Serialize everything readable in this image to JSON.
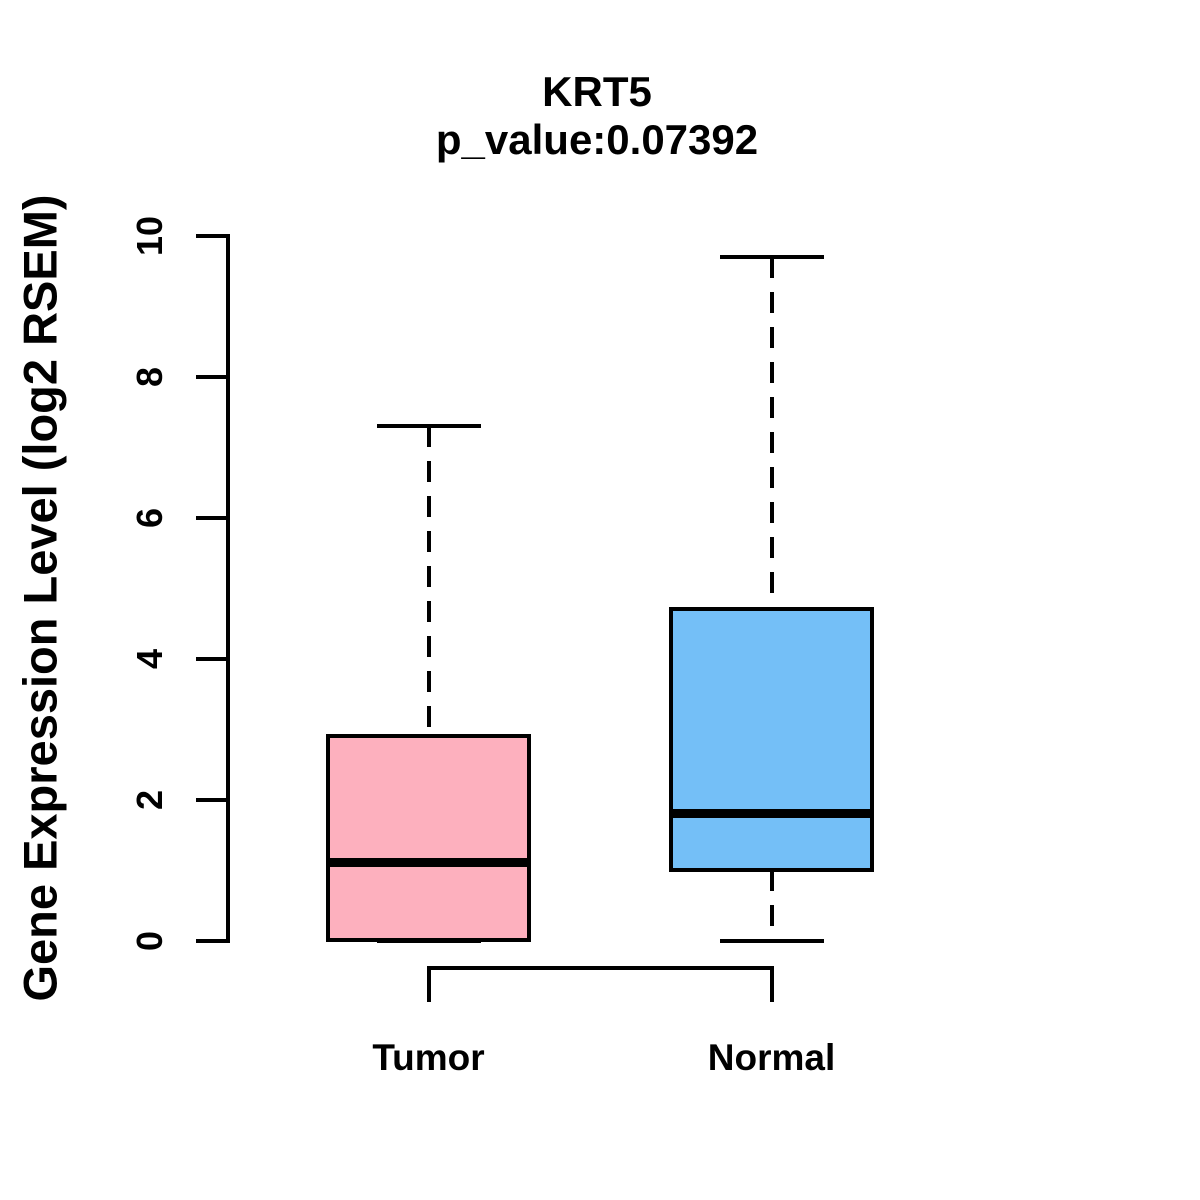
{
  "title": "KRT5",
  "subtitle": "p_value:0.07392",
  "y_axis_label": "Gene Expression Level (log2 RSEM)",
  "colors": {
    "tumor_fill": "#fdb0be",
    "normal_fill": "#74bff7",
    "line": "#000000",
    "background": "#ffffff"
  },
  "chart_data": {
    "type": "boxplot",
    "title": "KRT5",
    "subtitle": "p_value:0.07392",
    "ylabel": "Gene Expression Level (log2 RSEM)",
    "xlabel": "",
    "categories": [
      "Tumor",
      "Normal"
    ],
    "series": [
      {
        "name": "Tumor",
        "min": 0,
        "q1": 0,
        "median": 1.1,
        "q3": 2.9,
        "max": 7.3,
        "fill_color": "#fdb0be"
      },
      {
        "name": "Normal",
        "min": 0,
        "q1": 1.0,
        "median": 1.8,
        "q3": 4.7,
        "max": 9.7,
        "fill_color": "#74bff7"
      }
    ],
    "ylim": [
      0,
      10
    ],
    "yticks": [
      0,
      2,
      4,
      6,
      8,
      10
    ],
    "grid": false,
    "legend": false,
    "whisker_style": "dashed",
    "box_border_color": "#000000"
  }
}
